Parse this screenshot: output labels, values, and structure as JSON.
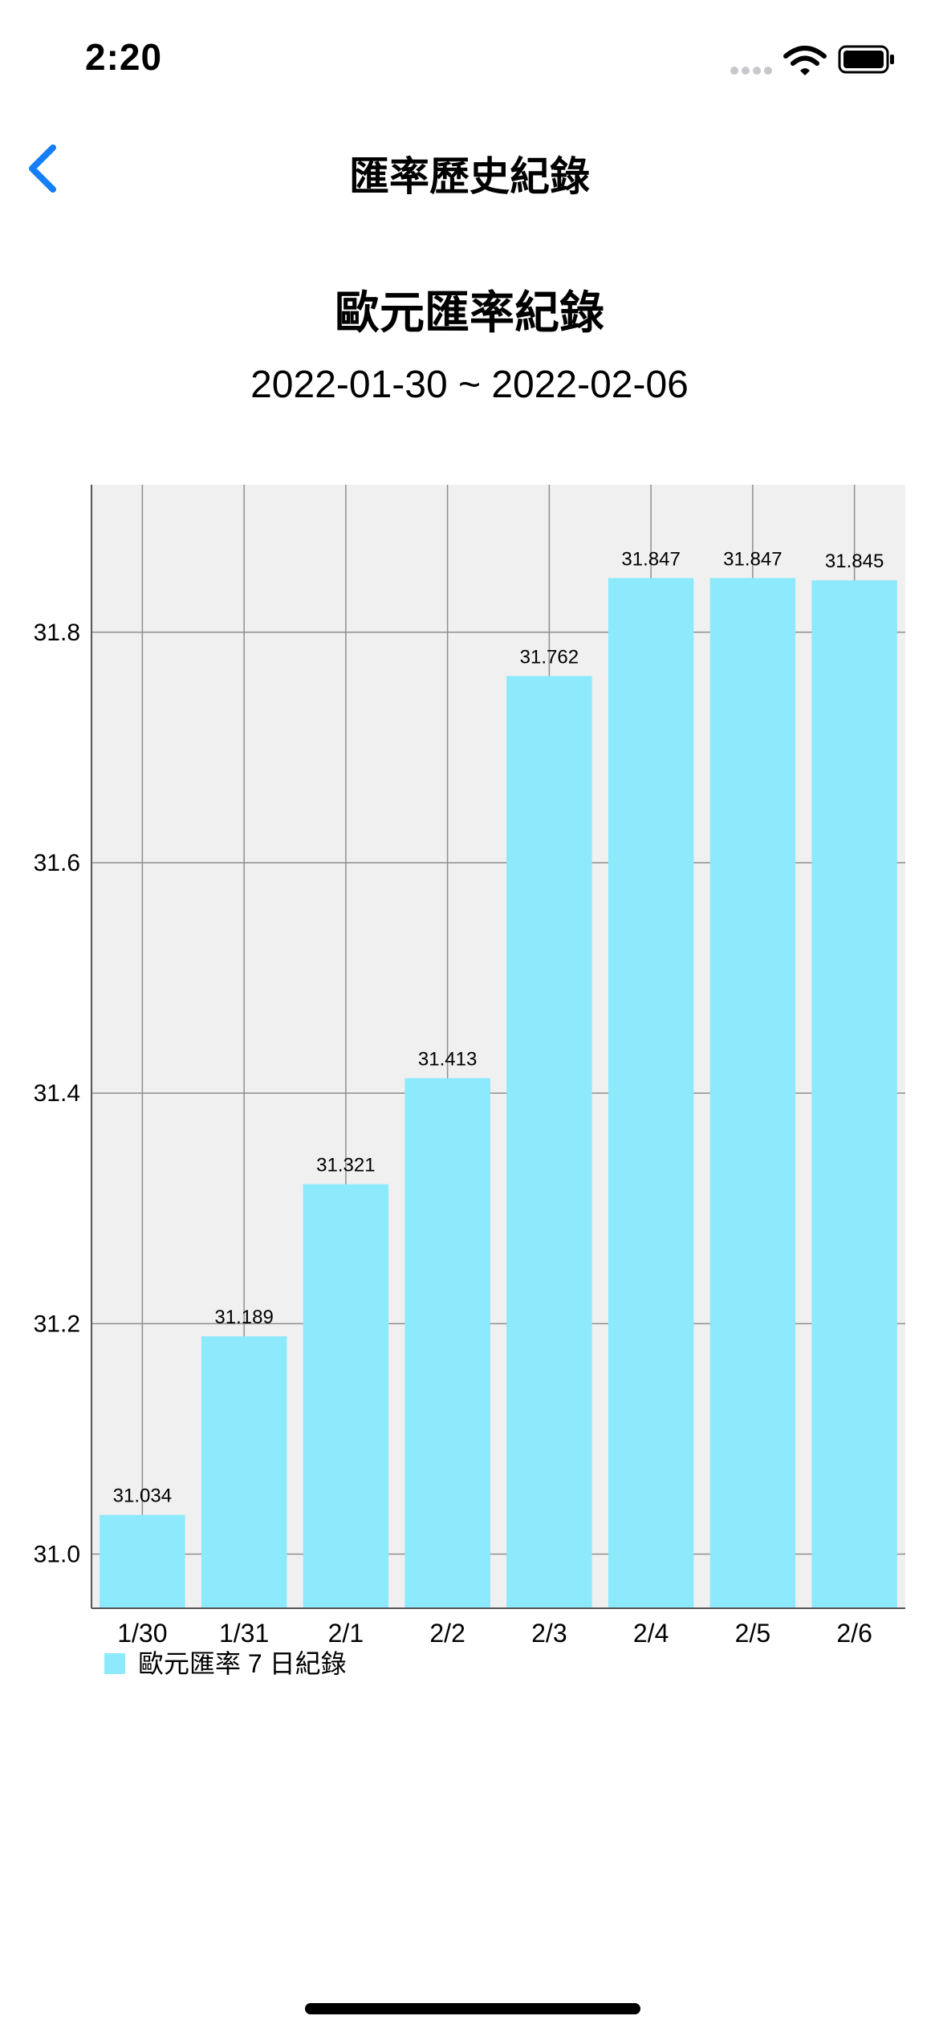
{
  "status_bar": {
    "time": "2:20"
  },
  "nav": {
    "title": "匯率歷史紀錄"
  },
  "header": {
    "title": "歐元匯率紀錄",
    "subtitle": "2022-01-30 ~ 2022-02-06"
  },
  "colors": {
    "accent": "#147EFB",
    "bar": "#8DE9FC",
    "plot_bg": "#F0F0F0",
    "grid": "#8E8E8E"
  },
  "chart_data": {
    "type": "bar",
    "categories": [
      "1/30",
      "1/31",
      "2/1",
      "2/2",
      "2/3",
      "2/4",
      "2/5",
      "2/6"
    ],
    "series": [
      {
        "name": "歐元匯率 7 日紀錄",
        "values": [
          31.034,
          31.189,
          31.321,
          31.413,
          31.762,
          31.847,
          31.847,
          31.845
        ]
      }
    ],
    "data_labels": [
      "31.034",
      "31.189",
      "31.321",
      "31.413",
      "31.762",
      "31.847",
      "31.847",
      "31.845"
    ],
    "yticks": [
      "31.0",
      "31.2",
      "31.4",
      "31.6",
      "31.8"
    ],
    "ylim": [
      30.953,
      31.928
    ],
    "grid": true,
    "legend_position": "bottom-left"
  }
}
